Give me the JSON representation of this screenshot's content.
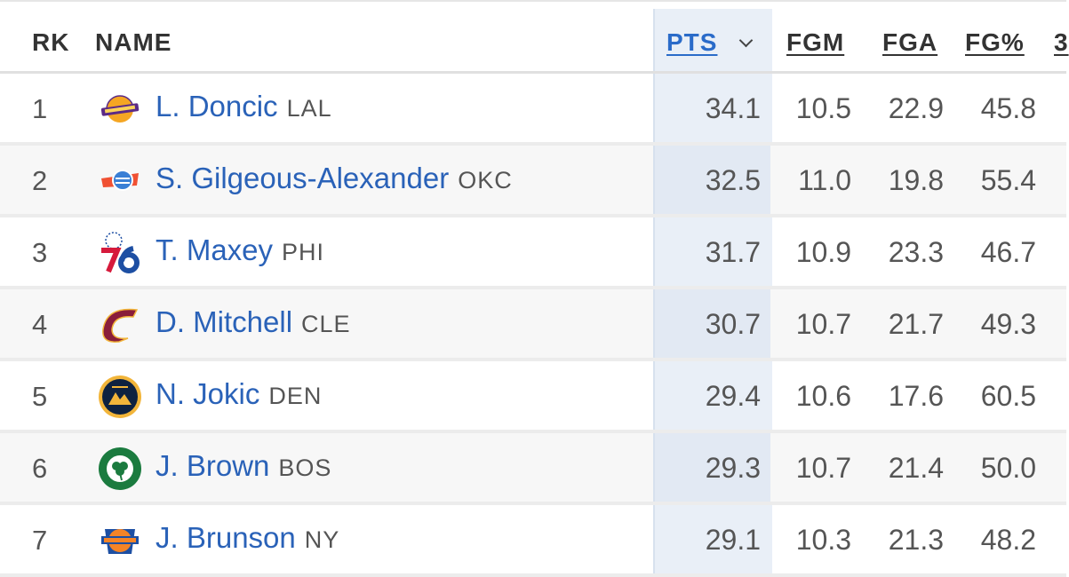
{
  "header": {
    "rk": "RK",
    "name": "NAME",
    "pts": "PTS",
    "fgm": "FGM",
    "fga": "FGA",
    "fgp": "FG%",
    "next": "3"
  },
  "rows": [
    {
      "rk": "1",
      "name": "L. Doncic",
      "team": "LAL",
      "pts": "34.1",
      "fgm": "10.5",
      "fga": "22.9",
      "fgp": "45.8",
      "logo": "lakers-logo-icon"
    },
    {
      "rk": "2",
      "name": "S. Gilgeous-Alexander",
      "team": "OKC",
      "pts": "32.5",
      "fgm": "11.0",
      "fga": "19.8",
      "fgp": "55.4",
      "logo": "thunder-logo-icon"
    },
    {
      "rk": "3",
      "name": "T. Maxey",
      "team": "PHI",
      "pts": "31.7",
      "fgm": "10.9",
      "fga": "23.3",
      "fgp": "46.7",
      "logo": "76ers-logo-icon"
    },
    {
      "rk": "4",
      "name": "D. Mitchell",
      "team": "CLE",
      "pts": "30.7",
      "fgm": "10.7",
      "fga": "21.7",
      "fgp": "49.3",
      "logo": "cavaliers-logo-icon"
    },
    {
      "rk": "5",
      "name": "N. Jokic",
      "team": "DEN",
      "pts": "29.4",
      "fgm": "10.6",
      "fga": "17.6",
      "fgp": "60.5",
      "logo": "nuggets-logo-icon"
    },
    {
      "rk": "6",
      "name": "J. Brown",
      "team": "BOS",
      "pts": "29.3",
      "fgm": "10.7",
      "fga": "21.4",
      "fgp": "50.0",
      "logo": "celtics-logo-icon"
    },
    {
      "rk": "7",
      "name": "J. Brunson",
      "team": "NY",
      "pts": "29.1",
      "fgm": "10.3",
      "fga": "21.3",
      "fgp": "48.2",
      "logo": "knicks-logo-icon"
    }
  ],
  "colors": {
    "link": "#2a62b8",
    "sort_header": "#2a6bc9",
    "pts_column_bg": "#e9eff7"
  }
}
